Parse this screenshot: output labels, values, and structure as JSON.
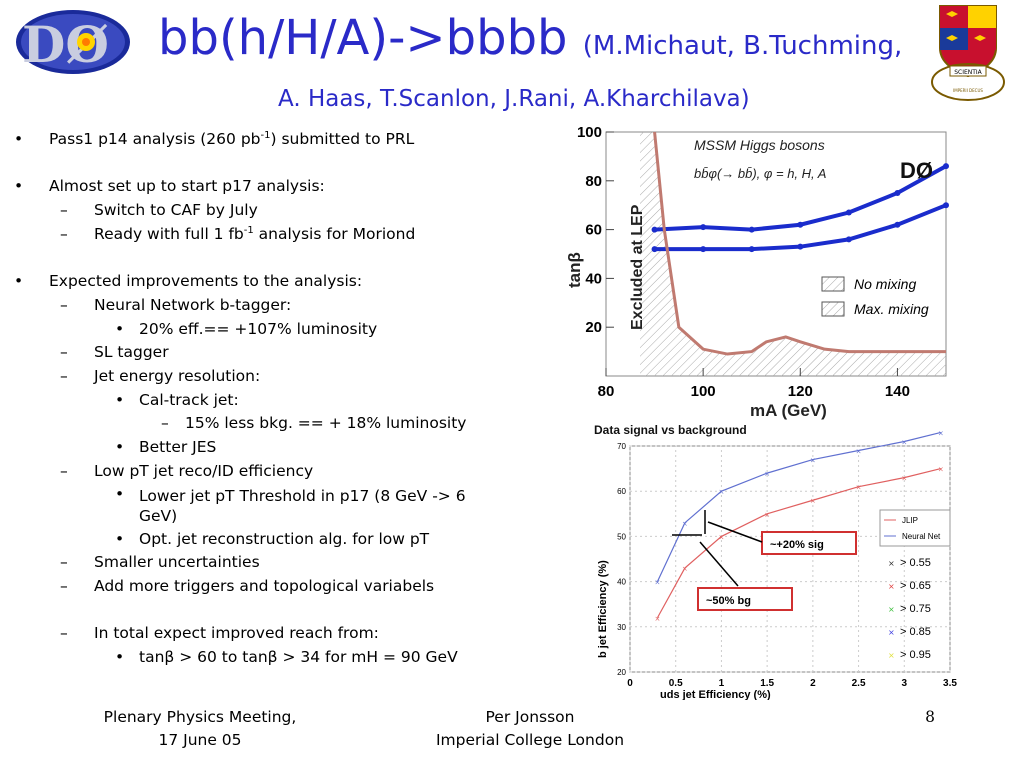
{
  "title": {
    "main": "bb(h/H/A)->bbbb",
    "authors_line1": "(M.Michaut, B.Tuchming,",
    "authors_line2": "A. Haas, T.Scanlon, J.Rani, A.Kharchilava)"
  },
  "logo": {
    "text": "DØ",
    "icon": "d0-experiment-logo"
  },
  "crest": {
    "icon": "imperial-college-crest",
    "motto": "SCIENTIA IMPERII DECUS ET TUTAMEN"
  },
  "bullets": {
    "b1": "Pass1 p14 analysis (260 pb",
    "b1_sup": "-1",
    "b1_end": ") submitted to PRL",
    "b2": "Almost set up to start p17 analysis:",
    "b2_1": "Switch to CAF by July",
    "b2_2": "Ready with full 1 fb",
    "b2_2_sup": "-1",
    "b2_2_end": " analysis for Moriond",
    "b3": "Expected improvements to the analysis:",
    "b3_1": "Neural Network b-tagger:",
    "b3_1_1": "20% eff.== +107% luminosity",
    "b3_2": "SL tagger",
    "b3_3": "Jet energy resolution:",
    "b3_3_1": "Cal-track jet:",
    "b3_3_1_1": "15% less bkg. == + 18% luminosity",
    "b3_3_2": "Better JES",
    "b3_4": "Low pT jet reco/ID efficiency",
    "b3_4_1": "Lower jet pT Threshold in p17 (8 GeV -> 6 GeV)",
    "b3_4_2": "Opt. jet reconstruction alg. for low pT",
    "b3_5": "Smaller uncertainties",
    "b3_6": "Add more triggers and topological variabels",
    "b3_7": "In total expect improved reach from:",
    "b3_7_1": "tanβ > 60 to tanβ > 34 for mH = 90 GeV"
  },
  "footer": {
    "meeting": "Plenary Physics Meeting,",
    "date": "17 June 05",
    "author": "Per Jonsson",
    "institution": "Imperial College London",
    "page": "8"
  },
  "chart_data": [
    {
      "type": "line",
      "title": "MSSM Higgs bosons",
      "subtitle": "bb̄φ(→ bb̄), φ = h, H, A",
      "experiment_label": "DØ",
      "region_label": "Excluded at LEP",
      "xlabel": "mA (GeV)",
      "ylabel": "tanβ",
      "xlim": [
        80,
        150
      ],
      "ylim": [
        0,
        100
      ],
      "xticks": [
        "80",
        "100",
        "120",
        "140"
      ],
      "yticks": [
        "20",
        "40",
        "60",
        "80",
        "100"
      ],
      "legend_placement": "bottom-right",
      "legend": [
        "No mixing",
        "Max. mixing"
      ],
      "series": [
        {
          "x": [
            90,
            100,
            110,
            120,
            130,
            140,
            150
          ],
          "y": [
            60,
            61,
            60,
            62,
            67,
            75,
            86
          ],
          "color": "#1a2ccc"
        },
        {
          "x": [
            90,
            100,
            110,
            120,
            130,
            140,
            150
          ],
          "y": [
            52,
            52,
            52,
            53,
            56,
            62,
            70
          ],
          "color": "#1a2ccc"
        },
        {
          "x": [
            90,
            92,
            95,
            100,
            105,
            110,
            113,
            117,
            120,
            125,
            130,
            140,
            150
          ],
          "y": [
            100,
            60,
            20,
            11,
            9,
            10,
            14,
            16,
            14,
            11,
            10,
            10,
            10
          ],
          "color": "#c07a70"
        }
      ]
    },
    {
      "type": "line",
      "title": "Data signal vs background",
      "xlabel": "uds jet Efficiency (%)",
      "ylabel": "b jet Efficiency (%)",
      "xlim": [
        0,
        3.5
      ],
      "ylim": [
        20,
        70
      ],
      "xticks": [
        "0",
        "0.5",
        "1",
        "1.5",
        "2",
        "2.5",
        "3",
        "3.5"
      ],
      "yticks": [
        "20",
        "30",
        "40",
        "50",
        "60",
        "70"
      ],
      "legend_placement": "top-right",
      "legend": [
        "JLIP",
        "Neural Net"
      ],
      "cut_legend": [
        "> 0.55",
        "> 0.65",
        "> 0.75",
        "> 0.85",
        "> 0.95"
      ],
      "cut_colors": [
        "#333333",
        "#e04040",
        "#40c040",
        "#4040e0",
        "#e0e040"
      ],
      "annotations": [
        "~+20% sig",
        "~50% bg"
      ],
      "series": [
        {
          "name": "JLIP",
          "x": [
            0.3,
            0.6,
            1.0,
            1.5,
            2.0,
            2.5,
            3.0,
            3.4
          ],
          "y": [
            32,
            43,
            50,
            55,
            58,
            61,
            63,
            65
          ],
          "color": "#e06060"
        },
        {
          "name": "Neural Net",
          "x": [
            0.3,
            0.6,
            1.0,
            1.5,
            2.0,
            2.5,
            3.0,
            3.4
          ],
          "y": [
            40,
            53,
            60,
            64,
            67,
            69,
            71,
            73
          ],
          "color": "#6070d0"
        }
      ]
    }
  ]
}
